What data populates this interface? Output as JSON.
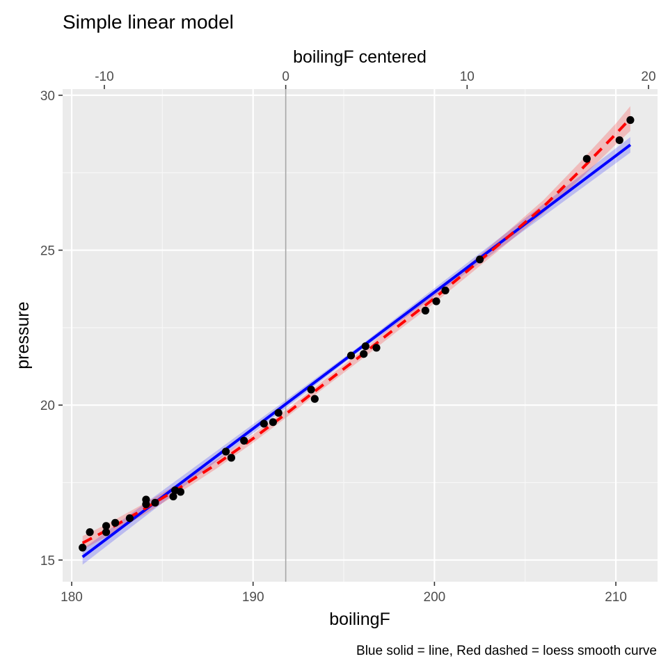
{
  "chart_data": {
    "type": "scatter",
    "title": "Simple linear model",
    "xlabel": "boilingF",
    "ylabel": "pressure",
    "secondary_xlabel": "boilingF centered",
    "caption": "Blue solid = line, Red dashed = loess smooth curve",
    "xlim": [
      179.5,
      212.3
    ],
    "ylim": [
      14.3,
      30.2
    ],
    "xticks": [
      180,
      190,
      200,
      210
    ],
    "yticks": [
      15,
      20,
      25,
      30
    ],
    "secondary_xticks": [
      -10,
      0,
      10,
      20
    ],
    "secondary_x_offset": 191.8,
    "grid": true,
    "reference_vline": 191.8,
    "points": [
      [
        180.6,
        15.4
      ],
      [
        181.0,
        15.9
      ],
      [
        181.9,
        16.1
      ],
      [
        181.9,
        15.9
      ],
      [
        182.4,
        16.2
      ],
      [
        183.2,
        16.35
      ],
      [
        184.1,
        16.95
      ],
      [
        184.1,
        16.8
      ],
      [
        184.6,
        16.85
      ],
      [
        185.6,
        17.05
      ],
      [
        185.7,
        17.25
      ],
      [
        186.0,
        17.2
      ],
      [
        188.5,
        18.5
      ],
      [
        188.8,
        18.3
      ],
      [
        189.5,
        18.85
      ],
      [
        190.6,
        19.4
      ],
      [
        191.1,
        19.45
      ],
      [
        191.4,
        19.75
      ],
      [
        193.2,
        20.5
      ],
      [
        193.4,
        20.2
      ],
      [
        195.4,
        21.6
      ],
      [
        196.1,
        21.65
      ],
      [
        196.2,
        21.9
      ],
      [
        196.8,
        21.85
      ],
      [
        199.5,
        23.05
      ],
      [
        200.1,
        23.35
      ],
      [
        200.6,
        23.7
      ],
      [
        202.5,
        24.7
      ],
      [
        208.4,
        27.95
      ],
      [
        210.2,
        28.55
      ],
      [
        210.8,
        29.2
      ]
    ],
    "series": [
      {
        "name": "line",
        "style": "solid",
        "color": "#0000ff",
        "x": [
          180.6,
          210.8
        ],
        "y": [
          15.1,
          28.4
        ],
        "band_halfwidth": [
          0.25,
          0.08,
          0.25
        ]
      },
      {
        "name": "loess smooth curve",
        "style": "dashed",
        "color": "#ff0000",
        "x": [
          180.6,
          182,
          184,
          186,
          188,
          190,
          192,
          194,
          196,
          198,
          200,
          202,
          204,
          206,
          208,
          210,
          210.8
        ],
        "y": [
          15.55,
          15.98,
          16.65,
          17.35,
          18.1,
          18.92,
          19.8,
          20.72,
          21.62,
          22.55,
          23.45,
          24.42,
          25.4,
          26.4,
          27.55,
          28.75,
          29.25
        ],
        "band_halfwidth": [
          0.22,
          0.15,
          0.12,
          0.15,
          0.2,
          0.4
        ]
      }
    ],
    "colors": {
      "panel": "#ebebeb",
      "grid_major": "#ffffff",
      "points": "#000000",
      "vline": "#a6a6a6"
    }
  }
}
